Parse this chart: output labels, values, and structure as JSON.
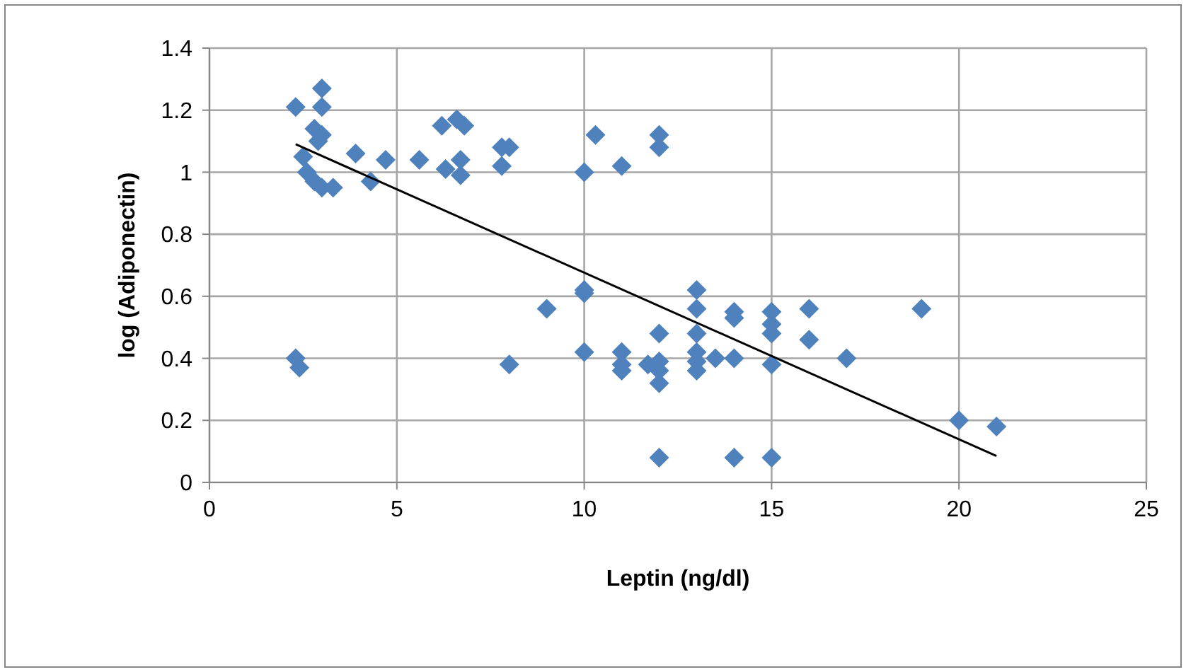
{
  "chart_data": {
    "type": "scatter",
    "xlabel": "Leptin (ng/dl)",
    "ylabel": "log (Adiponectin)",
    "xlim": [
      0,
      25
    ],
    "xticks": [
      0,
      5,
      10,
      15,
      20,
      25
    ],
    "ylim": [
      0,
      1.4
    ],
    "yticks": [
      0,
      0.2,
      0.4,
      0.6,
      0.8,
      1,
      1.2,
      1.4
    ],
    "grid": true,
    "series": [
      {
        "color": "#4f81bd",
        "marker": "diamond",
        "x": [
          2.3,
          3.0,
          3.0,
          2.8,
          3.0,
          2.9,
          2.5,
          2.6,
          2.8,
          3.0,
          3.3,
          3.9,
          4.3,
          4.7,
          2.3,
          2.4,
          5.6,
          6.2,
          6.6,
          6.8,
          6.3,
          6.7,
          6.7,
          7.8,
          8.0,
          7.8,
          8.0,
          9.0,
          10.0,
          10.3,
          11.0,
          12.0,
          12.0,
          10.0,
          10.0,
          10.0,
          11.0,
          11.0,
          11.0,
          12.0,
          11.7,
          12.0,
          12.0,
          12.0,
          12.0,
          13.0,
          13.0,
          13.0,
          13.0,
          13.0,
          13.0,
          13.5,
          14.0,
          14.0,
          14.0,
          14.0,
          15.0,
          15.0,
          15.0,
          15.0,
          15.0,
          16.0,
          16.0,
          17.0,
          19.0,
          20.0,
          21.0
        ],
        "values": [
          1.21,
          1.27,
          1.21,
          1.14,
          1.12,
          1.1,
          1.05,
          1.0,
          0.97,
          0.95,
          0.95,
          1.06,
          0.97,
          1.04,
          0.4,
          0.37,
          1.04,
          1.15,
          1.17,
          1.15,
          1.01,
          0.99,
          1.04,
          1.08,
          1.08,
          1.02,
          0.38,
          0.56,
          1.0,
          1.12,
          1.02,
          1.12,
          1.08,
          0.62,
          0.61,
          0.42,
          0.42,
          0.38,
          0.36,
          0.48,
          0.38,
          0.39,
          0.36,
          0.32,
          0.08,
          0.62,
          0.56,
          0.48,
          0.42,
          0.39,
          0.36,
          0.4,
          0.55,
          0.53,
          0.4,
          0.08,
          0.55,
          0.51,
          0.48,
          0.38,
          0.08,
          0.56,
          0.46,
          0.4,
          0.56,
          0.2,
          0.18
        ]
      },
      {
        "type": "line",
        "color": "#000000",
        "line_style": "solid",
        "marker": "none",
        "x": [
          2.3,
          21
        ],
        "values": [
          1.09,
          0.085
        ]
      }
    ]
  }
}
